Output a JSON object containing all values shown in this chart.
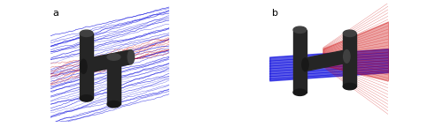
{
  "figsize": [
    5.0,
    1.44
  ],
  "dpi": 100,
  "background_color": "#ffffff",
  "panel_a_label": "a",
  "panel_b_label": "b",
  "label_fontsize": 8,
  "label_color": "black",
  "border_color": "#888888",
  "border_linewidth": 0.8,
  "blue_color": "#0000dd",
  "red_color": "#cc0000",
  "n_blue_lines_a": 45,
  "n_red_lines_a": 10,
  "n_blue_lines_b": 8,
  "n_red_lines_b": 35
}
